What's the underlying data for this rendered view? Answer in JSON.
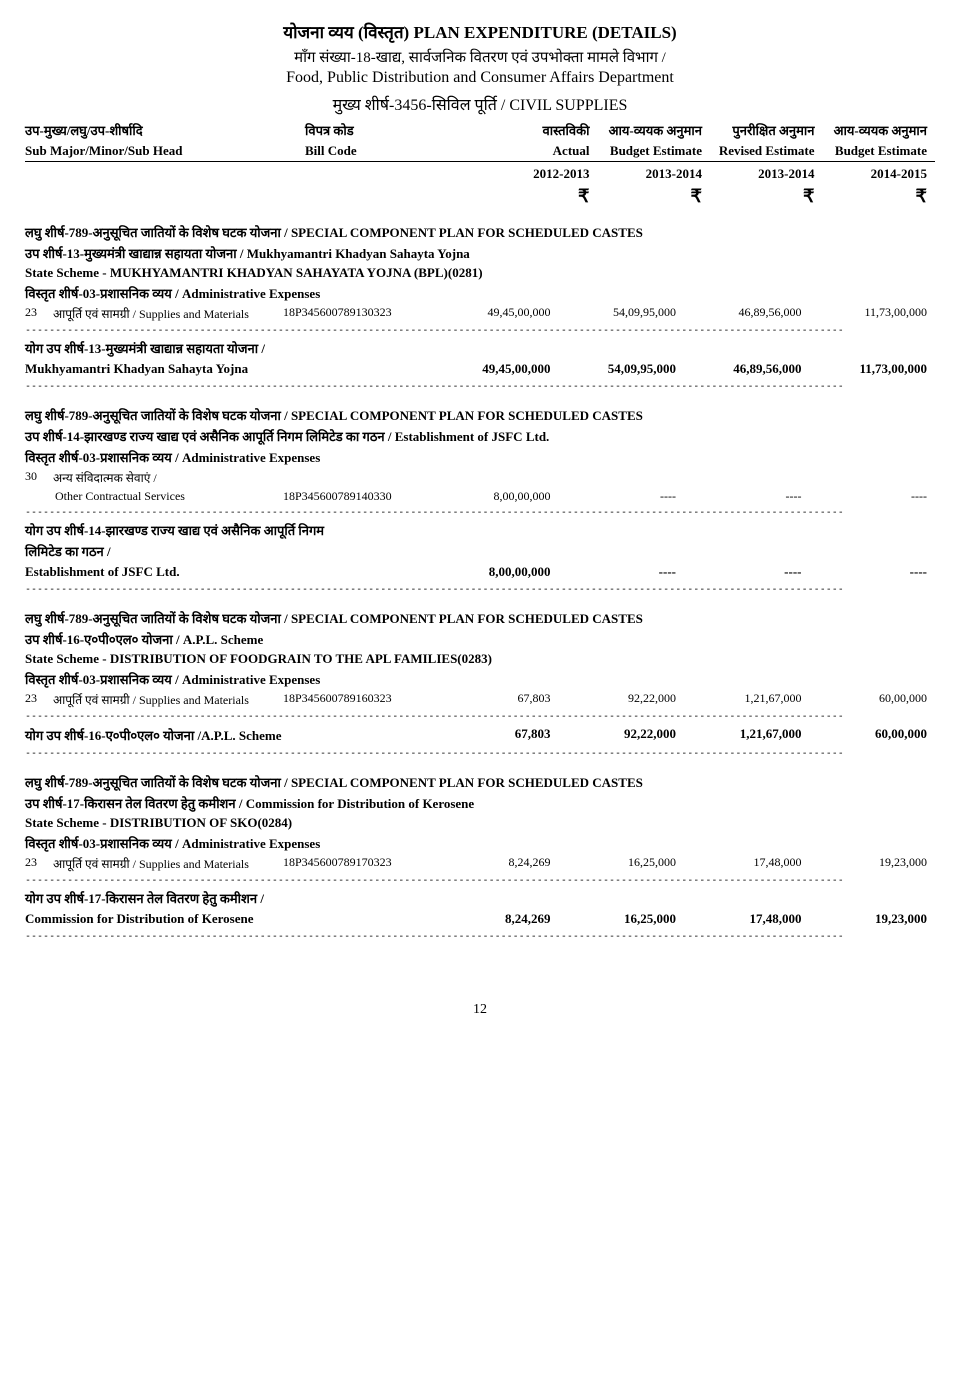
{
  "header": {
    "main_title": "योजना व्यय (विस्तृत) PLAN EXPENDITURE (DETAILS)",
    "demand_line": "माँग संख्या-18-खाद्य, सार्वजनिक वितरण एवं उपभोक्ता मामले विभाग /",
    "dept_en": "Food, Public Distribution and Consumer Affairs Department",
    "major_head": "मुख्य शीर्ष-3456-सिविल पूर्ति / CIVIL SUPPLIES",
    "col_hi": {
      "head": "उप-मुख्य/लघु/उप-शीर्षादि",
      "bill": "विपत्र कोड",
      "actual": "वास्तविकी",
      "budget": "आय-व्ययक अनुमान",
      "revised": "पुनरीक्षित अनुमान",
      "budget2": "आय-व्ययक अनुमान"
    },
    "col_en": {
      "head": "Sub Major/Minor/Sub Head",
      "bill": "Bill Code",
      "actual": "Actual",
      "budget": "Budget Estimate",
      "revised": "Revised Estimate",
      "budget2": "Budget Estimate"
    },
    "years": {
      "y1": "2012-2013",
      "y2": "2013-2014",
      "y3": "2013-2014",
      "y4": "2014-2015"
    },
    "rupee": "₹"
  },
  "dash": "----------------------------------------------------------------------------------------------------------------------------------------",
  "sections": [
    {
      "minor_head": "लघु शीर्ष-789-अनुसूचित जातियों के विशेष घटक योजना  / SPECIAL COMPONENT PLAN FOR SCHEDULED CASTES",
      "sub_head": "उप शीर्ष-13-मुख्यमंत्री खाद्यान्न सहायता योजना / Mukhyamantri Khadyan Sahayta Yojna",
      "state_scheme": "State Scheme  - MUKHYAMANTRI KHADYAN SAHAYATA YOJNA (BPL)(0281)",
      "detail_head": "विस्तृत शीर्ष-03-प्रशासनिक व्यय / Administrative Expenses",
      "item": {
        "code": "23",
        "label": "आपूर्ति एवं सामग्री / Supplies and Materials",
        "bill": "18P345600789130323",
        "v1": "49,45,00,000",
        "v2": "54,09,95,000",
        "v3": "46,89,56,000",
        "v4": "11,73,00,000"
      },
      "total_hi": "योग उप शीर्ष-13-मुख्यमंत्री खाद्यान्न सहायता योजना /",
      "total_en": "Mukhyamantri Khadyan Sahayta Yojna",
      "total": {
        "v1": "49,45,00,000",
        "v2": "54,09,95,000",
        "v3": "46,89,56,000",
        "v4": "11,73,00,000"
      }
    },
    {
      "minor_head": "लघु शीर्ष-789-अनुसूचित जातियों के विशेष घटक योजना  / SPECIAL COMPONENT PLAN FOR SCHEDULED CASTES",
      "sub_head": "उप शीर्ष-14-झारखण्ड राज्य खाद्य एवं असैनिक आपूर्ति निगम लिमिटेड का गठन / Establishment of JSFC Ltd.",
      "detail_head": "विस्तृत शीर्ष-03-प्रशासनिक व्यय / Administrative Expenses",
      "item": {
        "code": "30",
        "label_hi": "अन्य संविदात्मक सेवाएं /",
        "label_en": "Other Contractual Services",
        "bill": "18P345600789140330",
        "v1": "8,00,00,000",
        "v2": "----",
        "v3": "----",
        "v4": "----"
      },
      "total_hi1": "योग उप शीर्ष-14-झारखण्ड राज्य खाद्य एवं असैनिक आपूर्ति निगम",
      "total_hi2": "लिमिटेड का गठन /",
      "total_en": "Establishment of JSFC Ltd.",
      "total": {
        "v1": "8,00,00,000",
        "v2": "----",
        "v3": "----",
        "v4": "----"
      }
    },
    {
      "minor_head": "लघु शीर्ष-789-अनुसूचित जातियों के विशेष घटक योजना  / SPECIAL COMPONENT PLAN FOR SCHEDULED CASTES",
      "sub_head": "उप शीर्ष-16-ए०पी०एल० योजना / A.P.L. Scheme",
      "state_scheme": "State Scheme  - DISTRIBUTION OF FOODGRAIN TO THE APL FAMILIES(0283)",
      "detail_head": "विस्तृत शीर्ष-03-प्रशासनिक व्यय / Administrative Expenses",
      "item": {
        "code": "23",
        "label": "आपूर्ति एवं सामग्री / Supplies and Materials",
        "bill": "18P345600789160323",
        "v1": "67,803",
        "v2": "92,22,000",
        "v3": "1,21,67,000",
        "v4": "60,00,000"
      },
      "total_hi": "योग उप शीर्ष-16-ए०पी०एल० योजना /A.P.L. Scheme",
      "total": {
        "v1": "67,803",
        "v2": "92,22,000",
        "v3": "1,21,67,000",
        "v4": "60,00,000"
      }
    },
    {
      "minor_head": "लघु शीर्ष-789-अनुसूचित जातियों के विशेष घटक योजना  / SPECIAL COMPONENT PLAN FOR SCHEDULED CASTES",
      "sub_head": "उप शीर्ष-17-किरासन तेल वितरण हेतु कमीशन / Commission for Distribution of Kerosene",
      "state_scheme": "State Scheme  - DISTRIBUTION OF SKO(0284)",
      "detail_head": "विस्तृत शीर्ष-03-प्रशासनिक व्यय / Administrative Expenses",
      "item": {
        "code": "23",
        "label": "आपूर्ति एवं सामग्री / Supplies and Materials",
        "bill": "18P345600789170323",
        "v1": "8,24,269",
        "v2": "16,25,000",
        "v3": "17,48,000",
        "v4": "19,23,000"
      },
      "total_hi": "योग उप शीर्ष-17-किरासन तेल वितरण हेतु कमीशन /",
      "total_en": "Commission for Distribution of Kerosene",
      "total": {
        "v1": "8,24,269",
        "v2": "16,25,000",
        "v3": "17,48,000",
        "v4": "19,23,000"
      }
    }
  ],
  "page_number": "12"
}
